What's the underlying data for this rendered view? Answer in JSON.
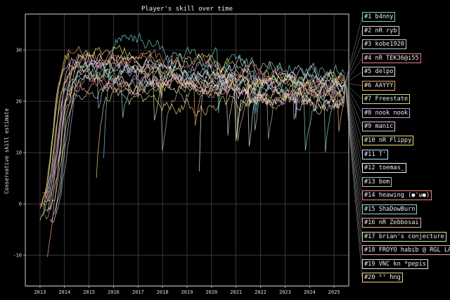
{
  "chart_data": {
    "type": "line",
    "title": "Player's skill over time",
    "xlabel": "",
    "ylabel": "Conservative skill estimate",
    "x_ticks": [
      "2013",
      "2014",
      "2015",
      "2016",
      "2017",
      "2018",
      "2019",
      "2020",
      "2021",
      "2022",
      "2023",
      "2024",
      "2025"
    ],
    "y_ticks": [
      -10,
      0,
      10,
      20,
      30
    ],
    "xlim": [
      2012.4,
      2025.6
    ],
    "ylim": [
      -16,
      37
    ],
    "grid": true,
    "legend_position": "right",
    "end": {
      "x": 2025.45,
      "y": 23.5
    },
    "series": [
      {
        "name": "#1 b4nny",
        "color": "#6fd3c8",
        "start": 2015.6,
        "stop": 2025.4,
        "peak": 35,
        "final": 25.5
      },
      {
        "name": "#2 nR ryb",
        "color": "#d7d7d7",
        "start": 2013.0,
        "stop": 2025.4,
        "peak": 32,
        "final": 25.0
      },
      {
        "name": "#3 kobe1920",
        "color": "#a9cfe8",
        "start": 2013.3,
        "stop": 2025.4,
        "peak": 30,
        "final": 24.6
      },
      {
        "name": "#4 nR TEK36@i55",
        "color": "#f07c84",
        "start": 2013.1,
        "stop": 2025.4,
        "peak": 29,
        "final": 24.2
      },
      {
        "name": "#5 delpo",
        "color": "#e6e6e6",
        "start": 2013.2,
        "stop": 2025.4,
        "peak": 28,
        "final": 23.9
      },
      {
        "name": "#6 AAYYY",
        "color": "#f4a85a",
        "start": 2013.0,
        "stop": 2025.4,
        "peak": 30,
        "final": 23.6
      },
      {
        "name": "#7 Freestate",
        "color": "#c6e07a",
        "start": 2013.1,
        "stop": 2025.4,
        "peak": 28,
        "final": 23.3
      },
      {
        "name": "#8 nook nook",
        "color": "#d29ae4",
        "start": 2013.2,
        "stop": 2025.4,
        "peak": 29,
        "final": 23.0
      },
      {
        "name": "#9 manic",
        "color": "#cfcfcf",
        "start": 2013.4,
        "stop": 2025.4,
        "peak": 27,
        "final": 22.7
      },
      {
        "name": "#10 nR Flippy",
        "color": "#f2e06e",
        "start": 2013.0,
        "stop": 2025.4,
        "peak": 33,
        "final": 22.4
      },
      {
        "name": "#11 T'",
        "color": "#bfe3ff",
        "start": 2013.5,
        "stop": 2025.4,
        "peak": 27,
        "final": 22.1
      },
      {
        "name": "#12 toemas_",
        "color": "#f3f3f3",
        "start": 2013.3,
        "stop": 2025.4,
        "peak": 26,
        "final": 21.8
      },
      {
        "name": "#13 bom",
        "color": "#b9b9b9",
        "start": 2013.6,
        "stop": 2025.4,
        "peak": 27,
        "final": 21.5
      },
      {
        "name": "#14 heawing (●'ω●)",
        "color": "#f28a80",
        "start": 2013.2,
        "stop": 2025.4,
        "peak": 28,
        "final": 21.2
      },
      {
        "name": "#15 ShaDowBurn",
        "color": "#8fd8d0",
        "start": 2013.1,
        "stop": 2025.4,
        "peak": 30,
        "final": 20.9
      },
      {
        "name": "#16 nR Zebbosai",
        "color": "#f4b08a",
        "start": 2013.3,
        "stop": 2025.4,
        "peak": 26,
        "final": 20.6
      },
      {
        "name": "#17 brian's conjecture",
        "color": "#d7e9a0",
        "start": 2013.4,
        "stop": 2025.4,
        "peak": 27,
        "final": 20.3
      },
      {
        "name": "#18 FROYO habib @ RGL LAN",
        "color": "#e8a0b8",
        "start": 2013.2,
        "stop": 2025.4,
        "peak": 28,
        "final": 20.0
      },
      {
        "name": "#19 VNC kn *pepis",
        "color": "#e5e5e5",
        "start": 2019.5,
        "stop": 2025.4,
        "peak": 25,
        "final": 19.6
      },
      {
        "name": "#20 ᴱᵀ hng",
        "color": "#f2d28a",
        "start": 2015.3,
        "stop": 2025.4,
        "peak": 24,
        "final": 19.2
      }
    ]
  }
}
